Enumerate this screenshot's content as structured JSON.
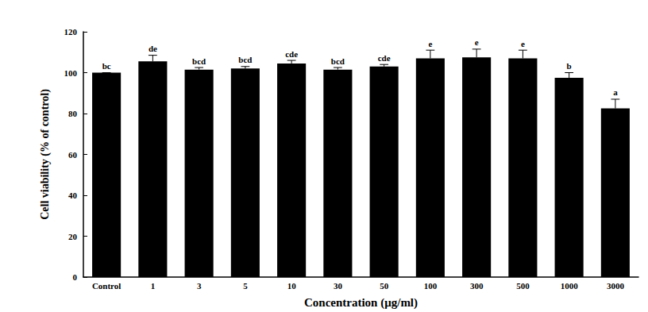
{
  "chart_data": {
    "type": "bar",
    "x_label": "Concentration (μg/ml)",
    "y_label": "Cell viability (% of control)",
    "categories": [
      "Control",
      "1",
      "3",
      "5",
      "10",
      "30",
      "50",
      "100",
      "300",
      "500",
      "1000",
      "3000"
    ],
    "values": [
      100,
      105.5,
      101.5,
      102,
      104.5,
      101.5,
      103,
      107,
      107.5,
      107,
      97.5,
      82.5
    ],
    "errors": [
      0,
      3,
      1,
      1,
      1.5,
      1,
      1,
      4,
      4,
      4,
      2.5,
      4.5
    ],
    "annotations": [
      "bc",
      "de",
      "bcd",
      "bcd",
      "cde",
      "bcd",
      "cde",
      "e",
      "e",
      "e",
      "b",
      "a"
    ],
    "color": "#000000",
    "ylim": [
      0,
      120
    ],
    "yticks": [
      0,
      20,
      40,
      60,
      80,
      100,
      120
    ],
    "grid": false
  }
}
